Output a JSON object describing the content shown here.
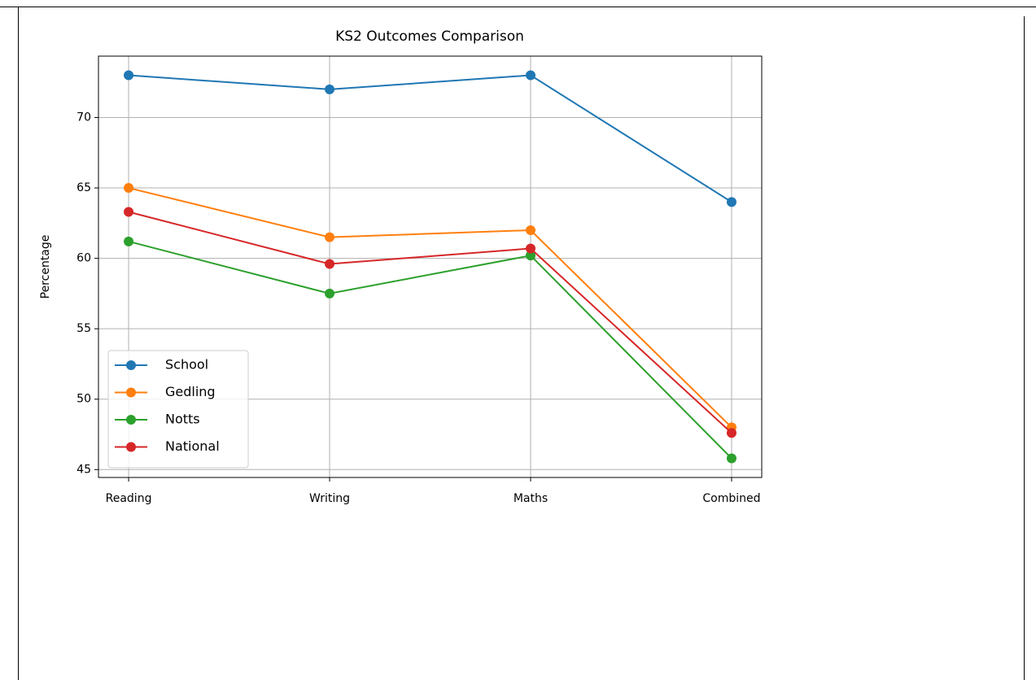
{
  "chart_data": {
    "type": "line",
    "title": "KS2 Outcomes Comparison",
    "y_label": "Percentage",
    "categories": [
      "Reading",
      "Writing",
      "Maths",
      "Combined"
    ],
    "series": [
      {
        "name": "School",
        "color": "#1f77b4",
        "values": [
          73,
          72,
          73,
          64
        ]
      },
      {
        "name": "Gedling",
        "color": "#ff7f0e",
        "values": [
          65,
          61.5,
          62,
          48
        ]
      },
      {
        "name": "Notts",
        "color": "#2ca02c",
        "values": [
          61.2,
          57.5,
          60.2,
          45.8
        ]
      },
      {
        "name": "National",
        "color": "#d62728",
        "values": [
          63.3,
          59.6,
          60.7,
          47.6
        ]
      }
    ],
    "ylim": [
      44.44,
      74.36
    ],
    "yticks": [
      45,
      50,
      55,
      60,
      65,
      70
    ],
    "grid": true,
    "legend": "lower left"
  }
}
